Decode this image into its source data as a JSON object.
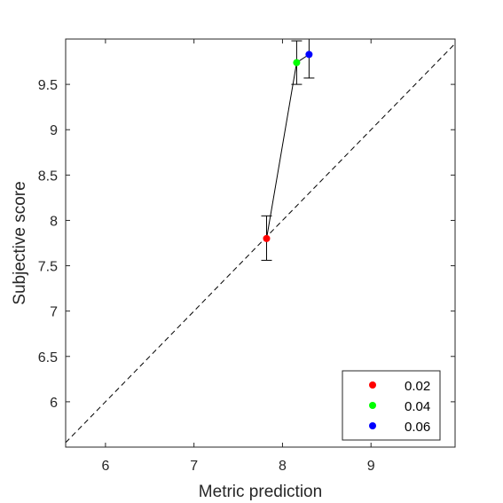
{
  "chart_data": {
    "type": "scatter",
    "xlabel": "Metric prediction",
    "ylabel": "Subjective score",
    "xlim": [
      5.55,
      9.95
    ],
    "ylim": [
      5.5,
      10.0
    ],
    "xticks": [
      6,
      7,
      8,
      9
    ],
    "yticks": [
      6,
      6.5,
      7,
      7.5,
      8,
      8.5,
      9,
      9.5
    ],
    "xtick_labels": [
      "6",
      "7",
      "8",
      "9"
    ],
    "ytick_labels": [
      "6",
      "6.5",
      "7",
      "7.5",
      "8",
      "8.5",
      "9",
      "9.5"
    ],
    "grid": false,
    "identity_line": {
      "style": "dashed",
      "color": "#000000"
    },
    "connect_points": true,
    "legend": {
      "position": "bottom-right"
    },
    "series": [
      {
        "name": "0.02",
        "color": "#ff0000",
        "x": 7.82,
        "y": 7.8,
        "err_low": 7.56,
        "err_high": 8.05
      },
      {
        "name": "0.04",
        "color": "#00ff00",
        "x": 8.16,
        "y": 9.74,
        "err_low": 9.5,
        "err_high": 9.98
      },
      {
        "name": "0.06",
        "color": "#0000ff",
        "x": 8.3,
        "y": 9.83,
        "err_low": 9.57,
        "err_high": 10.0
      }
    ]
  }
}
